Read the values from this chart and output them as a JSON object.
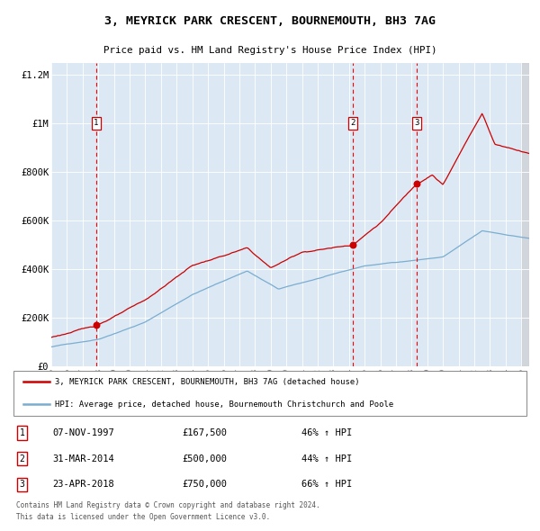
{
  "title": "3, MEYRICK PARK CRESCENT, BOURNEMOUTH, BH3 7AG",
  "subtitle": "Price paid vs. HM Land Registry's House Price Index (HPI)",
  "plot_bg_color": "#dce9f5",
  "red_line_color": "#cc0000",
  "blue_line_color": "#7aadcf",
  "ylim": [
    0,
    1250000
  ],
  "yticks": [
    0,
    200000,
    400000,
    600000,
    800000,
    1000000,
    1200000
  ],
  "ytick_labels": [
    "£0",
    "£200K",
    "£400K",
    "£600K",
    "£800K",
    "£1M",
    "£1.2M"
  ],
  "sale_dates_num": [
    1997.854,
    2014.247,
    2018.311
  ],
  "sale_prices": [
    167500,
    500000,
    750000
  ],
  "sale_labels": [
    "1",
    "2",
    "3"
  ],
  "legend_red_label": "3, MEYRICK PARK CRESCENT, BOURNEMOUTH, BH3 7AG (detached house)",
  "legend_blue_label": "HPI: Average price, detached house, Bournemouth Christchurch and Poole",
  "table_rows": [
    [
      "1",
      "07-NOV-1997",
      "£167,500",
      "46% ↑ HPI"
    ],
    [
      "2",
      "31-MAR-2014",
      "£500,000",
      "44% ↑ HPI"
    ],
    [
      "3",
      "23-APR-2018",
      "£750,000",
      "66% ↑ HPI"
    ]
  ],
  "footnote": "Contains HM Land Registry data © Crown copyright and database right 2024.\nThis data is licensed under the Open Government Licence v3.0.",
  "xlim_start": 1995.0,
  "xlim_end": 2025.5
}
